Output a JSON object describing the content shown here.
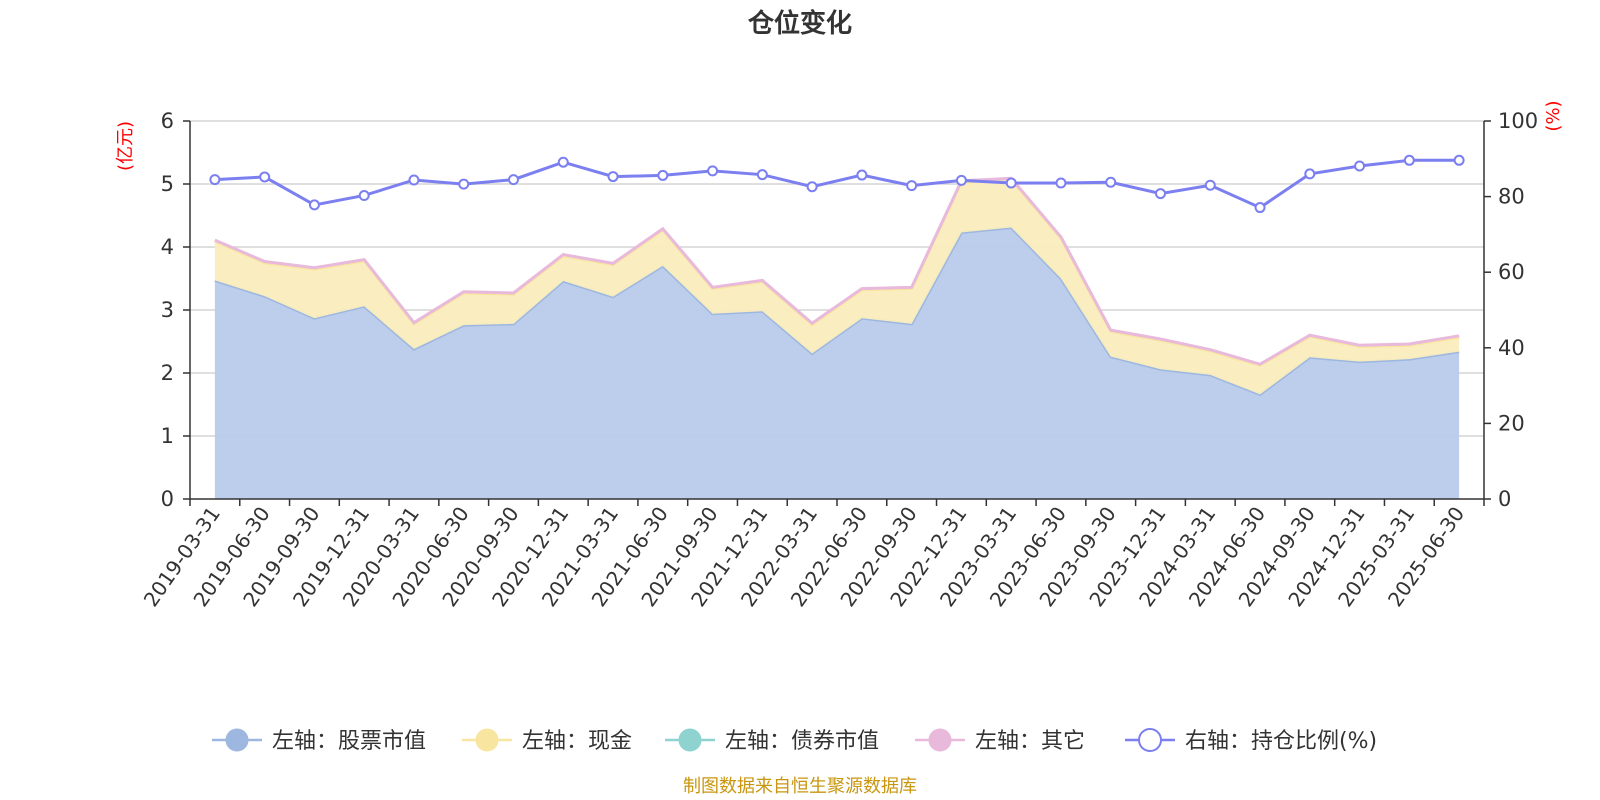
{
  "chart_data": {
    "type": "area",
    "title": "仓位变化",
    "left_axis_unit": "(亿元)",
    "right_axis_unit": "(%)",
    "ylim_left": [
      0,
      6
    ],
    "yticks_left": [
      0,
      1,
      2,
      3,
      4,
      5,
      6
    ],
    "ylim_right": [
      0,
      100
    ],
    "yticks_right": [
      0,
      20,
      40,
      60,
      80,
      100
    ],
    "grid": true,
    "legend_position": "bottom",
    "x": [
      "2019-03-31",
      "2019-06-30",
      "2019-09-30",
      "2019-12-31",
      "2020-03-31",
      "2020-06-30",
      "2020-09-30",
      "2020-12-31",
      "2021-03-31",
      "2021-06-30",
      "2021-09-30",
      "2021-12-31",
      "2022-03-31",
      "2022-06-30",
      "2022-09-30",
      "2022-12-31",
      "2023-03-31",
      "2023-06-30",
      "2023-09-30",
      "2023-12-31",
      "2024-03-31",
      "2024-06-30",
      "2024-09-30",
      "2024-12-31",
      "2025-03-31",
      "2025-06-30"
    ],
    "series": [
      {
        "name": "左轴：股票市值",
        "axis": "left",
        "stacked": true,
        "color": "#9db7e0",
        "fill": "#b8cbea",
        "values": [
          3.47,
          3.22,
          2.87,
          3.06,
          2.38,
          2.76,
          2.78,
          3.46,
          3.21,
          3.7,
          2.94,
          2.98,
          2.31,
          2.87,
          2.78,
          4.23,
          4.31,
          3.5,
          2.26,
          2.06,
          1.97,
          1.66,
          2.25,
          2.18,
          2.22,
          2.34
        ]
      },
      {
        "name": "左轴：现金",
        "axis": "left",
        "stacked": true,
        "color": "#f8e6a0",
        "fill": "#faedbd",
        "values": [
          0.62,
          0.53,
          0.78,
          0.72,
          0.4,
          0.51,
          0.47,
          0.4,
          0.51,
          0.57,
          0.4,
          0.47,
          0.46,
          0.45,
          0.56,
          0.8,
          0.76,
          0.64,
          0.4,
          0.46,
          0.38,
          0.46,
          0.33,
          0.24,
          0.22,
          0.23
        ]
      },
      {
        "name": "左轴：债券市值",
        "axis": "left",
        "stacked": true,
        "color": "#8fd3d1",
        "fill": "#8fd3d1",
        "values": [
          0,
          0,
          0,
          0,
          0,
          0,
          0,
          0,
          0,
          0,
          0,
          0,
          0,
          0,
          0,
          0,
          0,
          0,
          0,
          0,
          0,
          0,
          0,
          0,
          0,
          0
        ]
      },
      {
        "name": "左轴：其它",
        "axis": "left",
        "stacked": true,
        "color": "#e8b9db",
        "fill": "#e8b9db",
        "values": [
          0.02,
          0.02,
          0.02,
          0.02,
          0.02,
          0.02,
          0.02,
          0.02,
          0.02,
          0.02,
          0.02,
          0.02,
          0.02,
          0.02,
          0.02,
          0.02,
          0.02,
          0.02,
          0.02,
          0.02,
          0.02,
          0.02,
          0.02,
          0.02,
          0.02,
          0.02
        ]
      },
      {
        "name": "右轴：持仓比例(%)",
        "axis": "right",
        "type": "line",
        "color": "#7b7ff0",
        "values": [
          84.5,
          85.2,
          77.8,
          80.3,
          84.4,
          83.3,
          84.5,
          89.1,
          85.3,
          85.6,
          86.8,
          85.8,
          82.6,
          85.7,
          82.9,
          84.3,
          83.6,
          83.6,
          83.8,
          80.8,
          83.0,
          77.1,
          86.0,
          88.1,
          89.6,
          89.6
        ]
      }
    ]
  },
  "source_text": "制图数据来自恒生聚源数据库"
}
